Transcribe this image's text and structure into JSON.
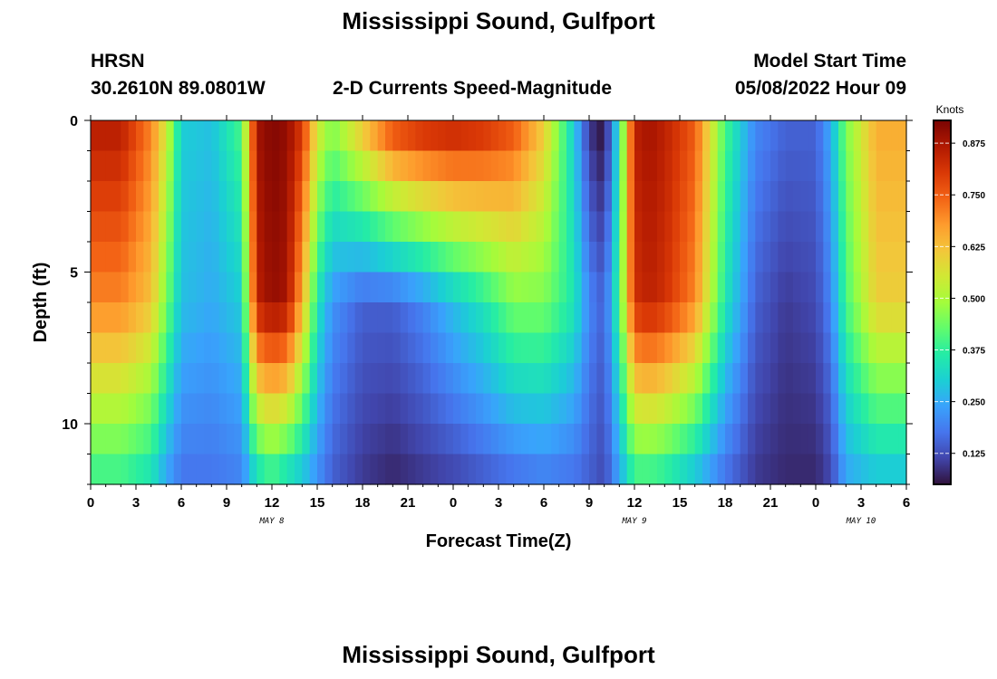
{
  "title": "Mississippi Sound, Gulfport",
  "header": {
    "station": "HRSN",
    "coords": "30.2610N  89.0801W",
    "subtitle": "2-D Currents Speed-Magnitude",
    "model_start_label": "Model Start Time",
    "model_start_value": "05/08/2022 Hour 09"
  },
  "bottom_title": "Mississippi Sound, Gulfport",
  "chart_data": {
    "type": "heatmap",
    "title": "Mississippi Sound, Gulfport",
    "subtitle": "2-D Currents Speed-Magnitude",
    "xlabel": "Forecast Time(Z)",
    "ylabel": "Depth (ft)",
    "colorbar_label": "Knots",
    "x_tick_labels": [
      "0",
      "3",
      "6",
      "9",
      "12",
      "15",
      "18",
      "21",
      "0",
      "3",
      "6",
      "9",
      "12",
      "15",
      "18",
      "21",
      "0",
      "3",
      "6"
    ],
    "x_date_labels": [
      {
        "label": "MAY 8",
        "hour": 12
      },
      {
        "label": "MAY 9",
        "hour": 36
      },
      {
        "label": "MAY 10",
        "hour": 51
      }
    ],
    "x_range_hours": [
      0,
      54
    ],
    "y_range": [
      0,
      12
    ],
    "y_ticks": [
      0,
      5,
      10
    ],
    "colorbar_range": [
      0.05,
      0.93
    ],
    "colorbar_ticks": [
      "0.875",
      "0.750",
      "0.625",
      "0.500",
      "0.375",
      "0.250",
      "0.125"
    ],
    "colorbar_tick_values": [
      0.875,
      0.75,
      0.625,
      0.5,
      0.375,
      0.25,
      0.125
    ],
    "colormap": [
      "#30123b",
      "#4145ab",
      "#4675ed",
      "#39a2fc",
      "#1bcfd4",
      "#24eca6",
      "#61fc6c",
      "#a4fc3b",
      "#d1e834",
      "#f3c63a",
      "#fe9b2d",
      "#f36315",
      "#d93806",
      "#b11901",
      "#7a0403"
    ],
    "depth_levels": [
      0.5,
      1.5,
      2.5,
      3.5,
      4.5,
      5.5,
      6.5,
      7.5,
      8.5,
      9.5,
      10.5,
      11.5
    ],
    "speed_profile": {
      "description": "Current speed (knots) sampled at key forecast hours for surface (0.5 ft), mid (6 ft) and near-bottom (11.5 ft) depths",
      "hours": [
        0,
        2,
        4,
        5,
        6,
        8,
        10,
        11,
        12,
        13,
        14,
        15,
        16,
        18,
        20,
        22,
        24,
        26,
        28,
        30,
        32,
        33,
        34,
        35,
        36,
        37,
        38,
        40,
        42,
        44,
        46,
        48,
        49,
        50,
        52,
        54
      ],
      "surface": [
        0.85,
        0.85,
        0.7,
        0.55,
        0.3,
        0.28,
        0.4,
        0.88,
        0.92,
        0.9,
        0.8,
        0.55,
        0.45,
        0.6,
        0.75,
        0.8,
        0.82,
        0.8,
        0.75,
        0.6,
        0.3,
        0.1,
        0.05,
        0.35,
        0.85,
        0.88,
        0.85,
        0.75,
        0.4,
        0.2,
        0.15,
        0.15,
        0.25,
        0.45,
        0.65,
        0.65
      ],
      "mid": [
        0.7,
        0.7,
        0.62,
        0.45,
        0.28,
        0.25,
        0.3,
        0.85,
        0.9,
        0.88,
        0.65,
        0.35,
        0.22,
        0.15,
        0.15,
        0.2,
        0.28,
        0.35,
        0.45,
        0.45,
        0.35,
        0.2,
        0.15,
        0.4,
        0.82,
        0.85,
        0.82,
        0.7,
        0.35,
        0.15,
        0.1,
        0.12,
        0.2,
        0.4,
        0.6,
        0.6
      ],
      "bottom": [
        0.4,
        0.4,
        0.35,
        0.25,
        0.18,
        0.18,
        0.2,
        0.35,
        0.4,
        0.35,
        0.3,
        0.22,
        0.15,
        0.1,
        0.08,
        0.1,
        0.12,
        0.15,
        0.18,
        0.2,
        0.18,
        0.15,
        0.12,
        0.25,
        0.4,
        0.4,
        0.38,
        0.3,
        0.18,
        0.1,
        0.08,
        0.08,
        0.12,
        0.25,
        0.3,
        0.3
      ]
    }
  }
}
